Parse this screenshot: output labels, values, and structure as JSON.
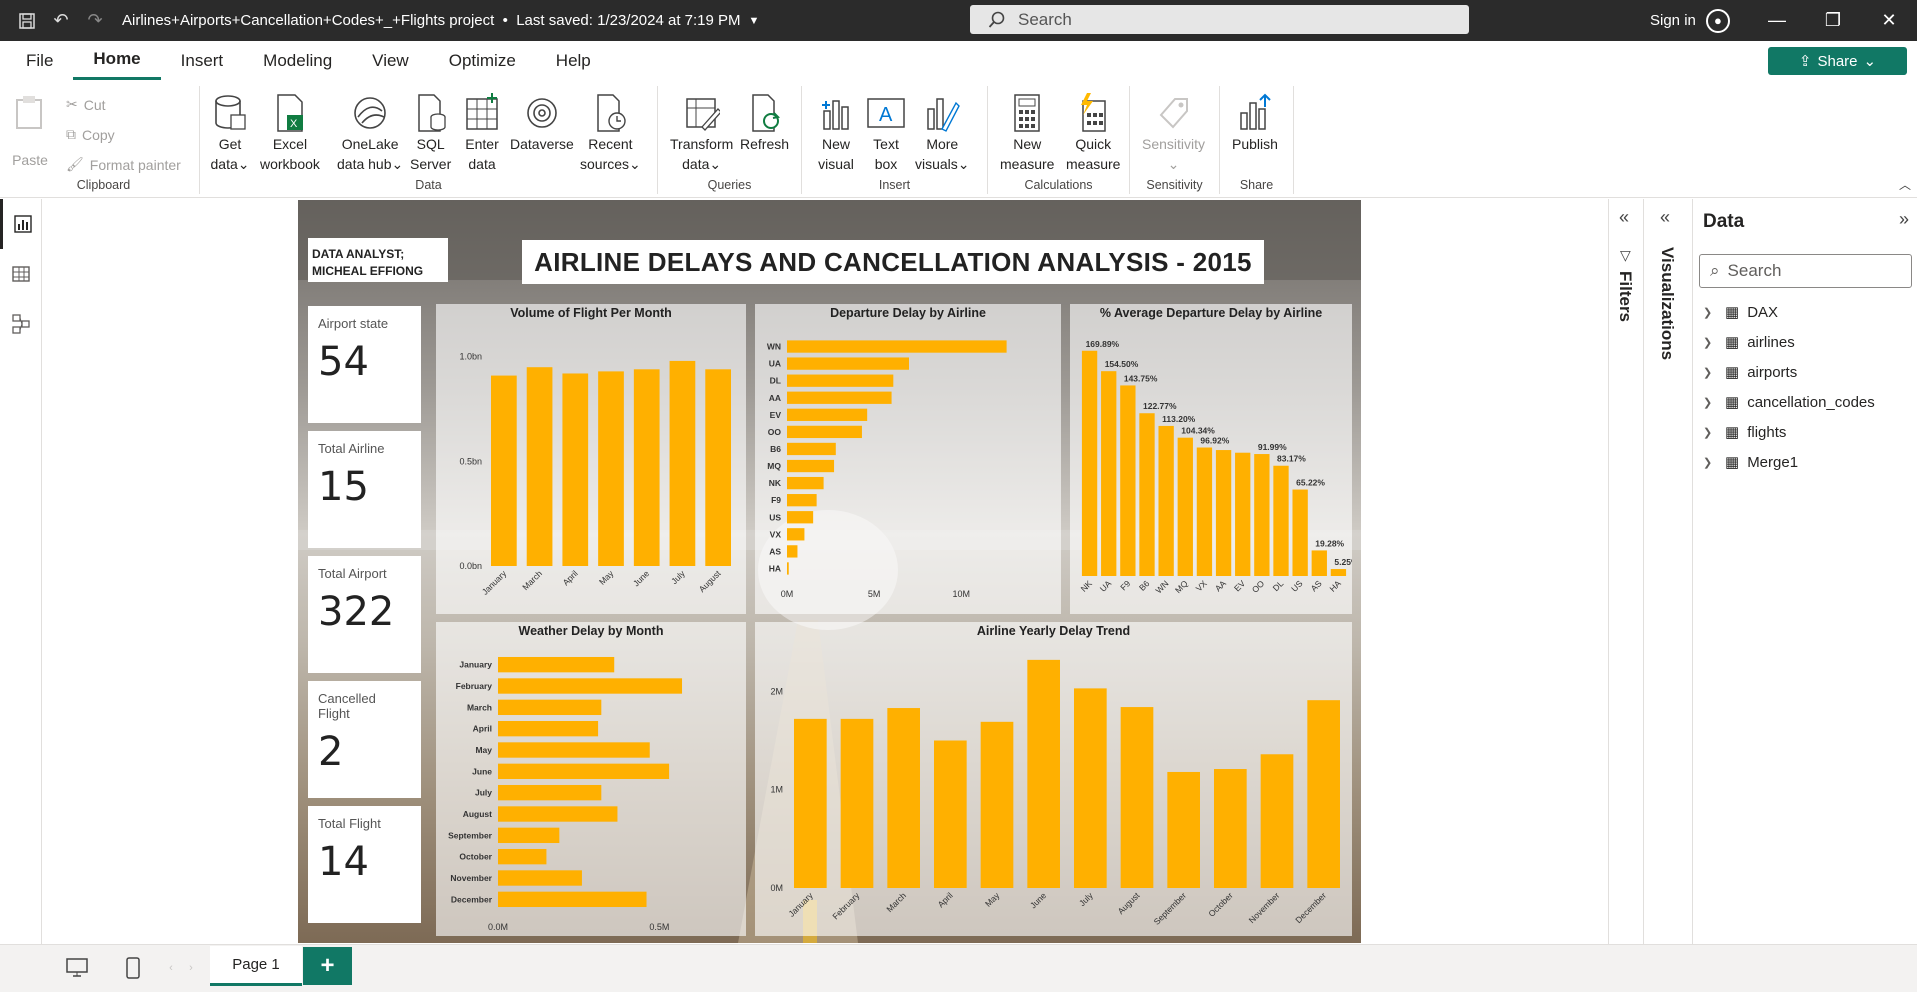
{
  "titlebar": {
    "doc_title": "Airlines+Airports+Cancellation+Codes+_+Flights project",
    "last_saved": "Last saved: 1/23/2024 at 7:19 PM",
    "search_placeholder": "Search",
    "signin": "Sign in"
  },
  "menu": {
    "items": [
      "File",
      "Home",
      "Insert",
      "Modeling",
      "View",
      "Optimize",
      "Help"
    ],
    "active": "Home",
    "share": "Share"
  },
  "ribbon": {
    "clipboard": {
      "label": "Clipboard",
      "paste": "Paste",
      "cut": "Cut",
      "copy": "Copy",
      "format_painter": "Format painter"
    },
    "data": {
      "label": "Data",
      "get_data": [
        "Get",
        "data"
      ],
      "excel": [
        "Excel",
        "workbook"
      ],
      "onelake": [
        "OneLake",
        "data hub"
      ],
      "sql": [
        "SQL",
        "Server"
      ],
      "enter": [
        "Enter",
        "data"
      ],
      "dataverse": "Dataverse",
      "recent": [
        "Recent",
        "sources"
      ]
    },
    "queries": {
      "label": "Queries",
      "transform": [
        "Transform",
        "data"
      ],
      "refresh": "Refresh"
    },
    "insert": {
      "label": "Insert",
      "new_visual": [
        "New",
        "visual"
      ],
      "text_box": [
        "Text",
        "box"
      ],
      "more_visuals": [
        "More",
        "visuals"
      ]
    },
    "calculations": {
      "label": "Calculations",
      "new_measure": [
        "New",
        "measure"
      ],
      "quick_measure": [
        "Quick",
        "measure"
      ]
    },
    "sensitivity": {
      "label": "Sensitivity",
      "btn": "Sensitivity"
    },
    "share": {
      "label": "Share",
      "publish": "Publish"
    }
  },
  "report": {
    "analyst": [
      "DATA ANALYST;",
      "MICHEAL EFFIONG"
    ],
    "title": "AIRLINE DELAYS AND CANCELLATION ANALYSIS - 2015",
    "cards": [
      {
        "label": "Airport state",
        "value": "54"
      },
      {
        "label": "Total Airline",
        "value": "15"
      },
      {
        "label": "Total Airport",
        "value": "322"
      },
      {
        "label": "Cancelled Flight",
        "value": "2"
      },
      {
        "label": "Total Flight",
        "value": "14"
      }
    ]
  },
  "chart_data": [
    {
      "type": "bar",
      "title": "Volume of Flight Per Month",
      "categories": [
        "January",
        "March",
        "April",
        "May",
        "June",
        "July",
        "August"
      ],
      "values": [
        0.91,
        0.95,
        0.92,
        0.93,
        0.94,
        0.98,
        0.94
      ],
      "yticks": [
        "1.0bn",
        "0.5bn",
        "0.0bn"
      ],
      "ylim": [
        0,
        1.08
      ]
    },
    {
      "type": "bar",
      "orientation": "horizontal",
      "title": "Departure Delay by Airline",
      "categories": [
        "WN",
        "UA",
        "DL",
        "AA",
        "EV",
        "OO",
        "B6",
        "MQ",
        "NK",
        "F9",
        "US",
        "VX",
        "AS",
        "HA"
      ],
      "values": [
        12.6,
        7.0,
        6.1,
        6.0,
        4.6,
        4.3,
        2.8,
        2.7,
        2.1,
        1.7,
        1.5,
        1.0,
        0.6,
        0.1
      ],
      "xticks": [
        "0M",
        "5M",
        "10M"
      ],
      "xlim": [
        0,
        14
      ]
    },
    {
      "type": "bar",
      "title": "% Average Departure Delay by Airline",
      "categories": [
        "NK",
        "UA",
        "F9",
        "B6",
        "WN",
        "MQ",
        "VX",
        "AA",
        "EV",
        "OO",
        "DL",
        "US",
        "AS",
        "HA"
      ],
      "values": [
        169.89,
        154.5,
        143.75,
        122.77,
        113.2,
        104.34,
        96.92,
        95.0,
        93.0,
        91.99,
        83.17,
        65.22,
        19.28,
        5.25
      ],
      "data_labels": [
        "169.89%",
        "154.50%",
        "143.75%",
        "122.77%",
        "113.20%",
        "104.34%",
        "96.92%",
        "",
        "",
        "91.99%",
        "83.17%",
        "65.22%",
        "19.28%",
        "5.25%"
      ],
      "ylim": [
        0,
        175
      ]
    },
    {
      "type": "bar",
      "orientation": "horizontal",
      "title": "Weather Delay by Month",
      "categories": [
        "January",
        "February",
        "March",
        "April",
        "May",
        "June",
        "July",
        "August",
        "September",
        "October",
        "November",
        "December"
      ],
      "values": [
        0.36,
        0.57,
        0.32,
        0.31,
        0.47,
        0.53,
        0.32,
        0.37,
        0.19,
        0.15,
        0.26,
        0.46
      ],
      "xticks": [
        "0.0M",
        "0.5M"
      ],
      "xlim": [
        0,
        0.7
      ]
    },
    {
      "type": "bar",
      "title": "Airline Yearly Delay Trend",
      "categories": [
        "January",
        "February",
        "March",
        "April",
        "May",
        "June",
        "July",
        "August",
        "September",
        "October",
        "November",
        "December"
      ],
      "values": [
        1.72,
        1.72,
        1.83,
        1.5,
        1.69,
        2.32,
        2.03,
        1.84,
        1.18,
        1.21,
        1.36,
        1.91
      ],
      "yticks": [
        "2M",
        "1M",
        "0M"
      ],
      "ylim": [
        0,
        2.4
      ]
    }
  ],
  "panes": {
    "filters": "Filters",
    "visualizations": "Visualizations",
    "data_title": "Data",
    "data_search": "Search",
    "tables": [
      "DAX",
      "airlines",
      "airports",
      "cancellation_codes",
      "flights",
      "Merge1"
    ]
  },
  "bottom": {
    "page_tab": "Page 1",
    "add": "+"
  }
}
